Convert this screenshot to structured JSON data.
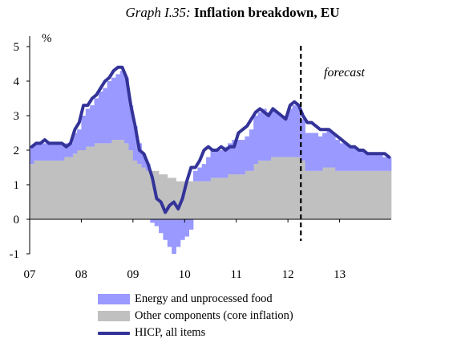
{
  "title": {
    "prefix": "Graph I.35:",
    "main": "Inflation breakdown, EU"
  },
  "chart_data": {
    "type": "area",
    "title": "Graph I.35: Inflation breakdown, EU",
    "ylabel": "%",
    "xlabel": "",
    "ylim": [
      -1,
      5
    ],
    "yticks": [
      5,
      4,
      3,
      2,
      1,
      0,
      -1
    ],
    "x_tick_labels": [
      "07",
      "08",
      "09",
      "10",
      "11",
      "12",
      "13"
    ],
    "x_tick_positions": [
      2007,
      2008,
      2009,
      2010,
      2011,
      2012,
      2013
    ],
    "x_range": [
      2007,
      2014
    ],
    "forecast_start": 2012.25,
    "annotations": [
      {
        "text": "forecast"
      }
    ],
    "colors": {
      "energy": "#9999ff",
      "core": "#c0c0c0",
      "hicp": "#333399"
    },
    "series": [
      {
        "name": "Energy and unprocessed food",
        "kind": "stacked-bar",
        "values": [
          0.5,
          0.5,
          0.5,
          0.5,
          0.5,
          0.5,
          0.5,
          0.5,
          0.4,
          0.4,
          0.6,
          0.6,
          1.0,
          1.1,
          1.2,
          1.3,
          1.5,
          1.6,
          1.8,
          1.8,
          1.9,
          2.0,
          1.9,
          1.3,
          1.0,
          0.6,
          0.4,
          0.2,
          -0.1,
          -0.2,
          -0.4,
          -0.6,
          -0.8,
          -1.0,
          -0.8,
          -0.6,
          -0.5,
          -0.3,
          0.3,
          0.4,
          0.5,
          0.7,
          0.8,
          0.8,
          0.8,
          0.9,
          0.9,
          1.0,
          1.0,
          1.0,
          1.0,
          1.2,
          1.4,
          1.4,
          1.5,
          1.4,
          1.4,
          1.3,
          1.2,
          1.2,
          1.4,
          1.5,
          1.5,
          1.2,
          1.1,
          1.1,
          1.1,
          1.0,
          1.0,
          1.1,
          1.0,
          0.9,
          0.8,
          0.8,
          0.7,
          0.7,
          0.6,
          0.6,
          0.5,
          0.5,
          0.5,
          0.5,
          0.4,
          0.4
        ]
      },
      {
        "name": "Other components (core inflation)",
        "kind": "stacked-bar",
        "values": [
          1.6,
          1.7,
          1.7,
          1.7,
          1.7,
          1.7,
          1.7,
          1.7,
          1.8,
          1.8,
          1.9,
          2.0,
          2.0,
          2.1,
          2.1,
          2.2,
          2.2,
          2.2,
          2.2,
          2.3,
          2.3,
          2.3,
          2.2,
          2.0,
          1.7,
          1.6,
          1.5,
          1.4,
          1.4,
          1.4,
          1.3,
          1.3,
          1.2,
          1.2,
          1.1,
          1.1,
          1.1,
          1.1,
          1.1,
          1.1,
          1.1,
          1.1,
          1.2,
          1.2,
          1.2,
          1.2,
          1.3,
          1.3,
          1.3,
          1.3,
          1.4,
          1.4,
          1.6,
          1.7,
          1.7,
          1.7,
          1.8,
          1.8,
          1.8,
          1.8,
          1.8,
          1.8,
          1.8,
          1.7,
          1.4,
          1.4,
          1.4,
          1.4,
          1.5,
          1.5,
          1.5,
          1.4,
          1.4,
          1.4,
          1.4,
          1.4,
          1.4,
          1.4,
          1.4,
          1.4,
          1.4,
          1.4,
          1.4,
          1.4
        ]
      },
      {
        "name": "HICP, all items",
        "kind": "line",
        "values": [
          2.1,
          2.2,
          2.2,
          2.3,
          2.2,
          2.2,
          2.2,
          2.2,
          2.1,
          2.2,
          2.6,
          2.8,
          3.3,
          3.3,
          3.5,
          3.6,
          3.8,
          4.0,
          4.1,
          4.3,
          4.4,
          4.4,
          4.1,
          3.3,
          2.7,
          2.0,
          1.9,
          1.6,
          1.2,
          0.6,
          0.5,
          0.2,
          0.4,
          0.5,
          0.3,
          0.6,
          1.1,
          1.5,
          1.5,
          1.7,
          2.0,
          2.1,
          2.0,
          2.0,
          2.1,
          2.0,
          2.1,
          2.1,
          2.5,
          2.6,
          2.7,
          2.9,
          3.1,
          3.2,
          3.1,
          3.0,
          3.2,
          3.1,
          3.0,
          2.9,
          3.3,
          3.4,
          3.3,
          3.0,
          2.8,
          2.8,
          2.7,
          2.6,
          2.6,
          2.6,
          2.5,
          2.4,
          2.3,
          2.2,
          2.1,
          2.1,
          2.0,
          2.0,
          1.9,
          1.9,
          1.9,
          1.9,
          1.9,
          1.8
        ]
      }
    ],
    "grid": false,
    "legend_position": "bottom-left"
  }
}
